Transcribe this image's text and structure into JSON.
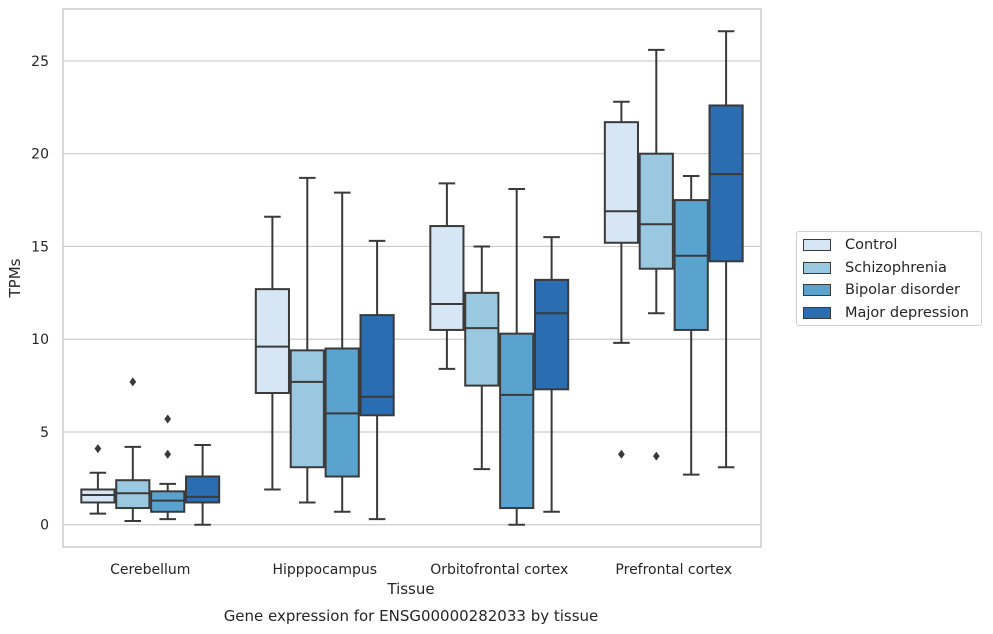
{
  "chart_data": {
    "type": "box",
    "title": "",
    "caption": "Gene expression for ENSG00000282033 by tissue",
    "xlabel": "Tissue",
    "ylabel": "TPMs",
    "ylim": [
      -1.2,
      27.8
    ],
    "yticks": [
      "0",
      "5",
      "10",
      "15",
      "20",
      "25"
    ],
    "categories": [
      "Cerebellum",
      "Hipppocampus",
      "Orbitofrontal cortex",
      "Prefrontal cortex"
    ],
    "grid": "horizontal",
    "legend_position": "outside-right",
    "series": [
      {
        "name": "Control",
        "color": "#d6e6f4",
        "boxes": [
          {
            "whislo": 0.6,
            "q1": 1.2,
            "med": 1.6,
            "q3": 1.9,
            "whishi": 2.8,
            "fliers": [
              4.1
            ]
          },
          {
            "whislo": 1.9,
            "q1": 7.1,
            "med": 9.6,
            "q3": 12.7,
            "whishi": 16.6,
            "fliers": []
          },
          {
            "whislo": 8.4,
            "q1": 10.5,
            "med": 11.9,
            "q3": 16.1,
            "whishi": 18.4,
            "fliers": []
          },
          {
            "whislo": 9.8,
            "q1": 15.2,
            "med": 16.9,
            "q3": 21.7,
            "whishi": 22.8,
            "fliers": [
              3.8
            ]
          }
        ]
      },
      {
        "name": "Schizophrenia",
        "color": "#9ac8e0",
        "boxes": [
          {
            "whislo": 0.2,
            "q1": 0.9,
            "med": 1.7,
            "q3": 2.4,
            "whishi": 4.2,
            "fliers": [
              7.7
            ]
          },
          {
            "whislo": 1.2,
            "q1": 3.1,
            "med": 7.7,
            "q3": 9.4,
            "whishi": 18.7,
            "fliers": []
          },
          {
            "whislo": 3.0,
            "q1": 7.5,
            "med": 10.6,
            "q3": 12.5,
            "whishi": 15.0,
            "fliers": []
          },
          {
            "whislo": 11.4,
            "q1": 13.8,
            "med": 16.2,
            "q3": 20.0,
            "whishi": 25.6,
            "fliers": [
              3.7
            ]
          }
        ]
      },
      {
        "name": "Bipolar disorder",
        "color": "#5ba3cf",
        "boxes": [
          {
            "whislo": 0.3,
            "q1": 0.7,
            "med": 1.3,
            "q3": 1.8,
            "whishi": 2.2,
            "fliers": [
              5.7,
              3.8
            ]
          },
          {
            "whislo": 0.7,
            "q1": 2.6,
            "med": 6.0,
            "q3": 9.5,
            "whishi": 17.9,
            "fliers": []
          },
          {
            "whislo": 0.0,
            "q1": 0.9,
            "med": 7.0,
            "q3": 10.3,
            "whishi": 18.1,
            "fliers": []
          },
          {
            "whislo": 2.7,
            "q1": 10.5,
            "med": 14.5,
            "q3": 17.5,
            "whishi": 18.8,
            "fliers": []
          }
        ]
      },
      {
        "name": "Major depression",
        "color": "#2a6db0",
        "boxes": [
          {
            "whislo": 0.0,
            "q1": 1.2,
            "med": 1.5,
            "q3": 2.6,
            "whishi": 4.3,
            "fliers": []
          },
          {
            "whislo": 0.3,
            "q1": 5.9,
            "med": 6.9,
            "q3": 11.3,
            "whishi": 15.3,
            "fliers": []
          },
          {
            "whislo": 0.7,
            "q1": 7.3,
            "med": 11.4,
            "q3": 13.2,
            "whishi": 15.5,
            "fliers": []
          },
          {
            "whislo": 3.1,
            "q1": 14.2,
            "med": 18.9,
            "q3": 22.6,
            "whishi": 26.6,
            "fliers": []
          }
        ]
      }
    ]
  }
}
